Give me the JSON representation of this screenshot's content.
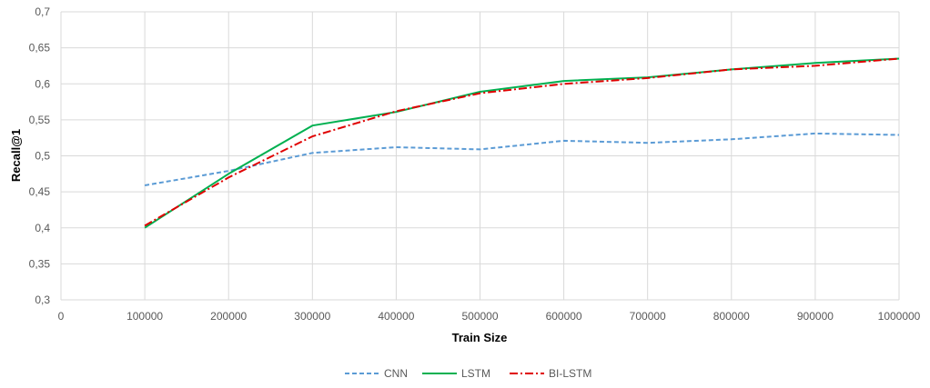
{
  "chart_data": {
    "type": "line",
    "xlabel": "Train Size",
    "ylabel": "Recall@1",
    "xlim": [
      0,
      1000000
    ],
    "ylim": [
      0.3,
      0.7
    ],
    "x_ticks": [
      0,
      100000,
      200000,
      300000,
      400000,
      500000,
      600000,
      700000,
      800000,
      900000,
      1000000
    ],
    "x_tick_labels": [
      "0",
      "100000",
      "200000",
      "300000",
      "400000",
      "500000",
      "600000",
      "700000",
      "800000",
      "900000",
      "1000000"
    ],
    "y_ticks": [
      0.3,
      0.35,
      0.4,
      0.45,
      0.5,
      0.55,
      0.6,
      0.65,
      0.7
    ],
    "y_tick_labels": [
      "0,3",
      "0,35",
      "0,4",
      "0,45",
      "0,5",
      "0,55",
      "0,6",
      "0,65",
      "0,7"
    ],
    "grid": true,
    "legend_position": "bottom",
    "x": [
      100000,
      200000,
      300000,
      400000,
      500000,
      600000,
      700000,
      800000,
      900000,
      1000000
    ],
    "series": [
      {
        "name": "CNN",
        "color": "#5b9bd5",
        "style": "dashed",
        "values": [
          0.459,
          0.479,
          0.504,
          0.512,
          0.509,
          0.521,
          0.518,
          0.523,
          0.531,
          0.529
        ]
      },
      {
        "name": "LSTM",
        "color": "#00b050",
        "style": "solid",
        "values": [
          0.4,
          0.475,
          0.542,
          0.561,
          0.589,
          0.604,
          0.609,
          0.62,
          0.629,
          0.635
        ]
      },
      {
        "name": "BI-LSTM",
        "color": "#e00000",
        "style": "dashdot",
        "values": [
          0.403,
          0.47,
          0.527,
          0.562,
          0.587,
          0.6,
          0.608,
          0.62,
          0.625,
          0.635
        ]
      }
    ]
  }
}
